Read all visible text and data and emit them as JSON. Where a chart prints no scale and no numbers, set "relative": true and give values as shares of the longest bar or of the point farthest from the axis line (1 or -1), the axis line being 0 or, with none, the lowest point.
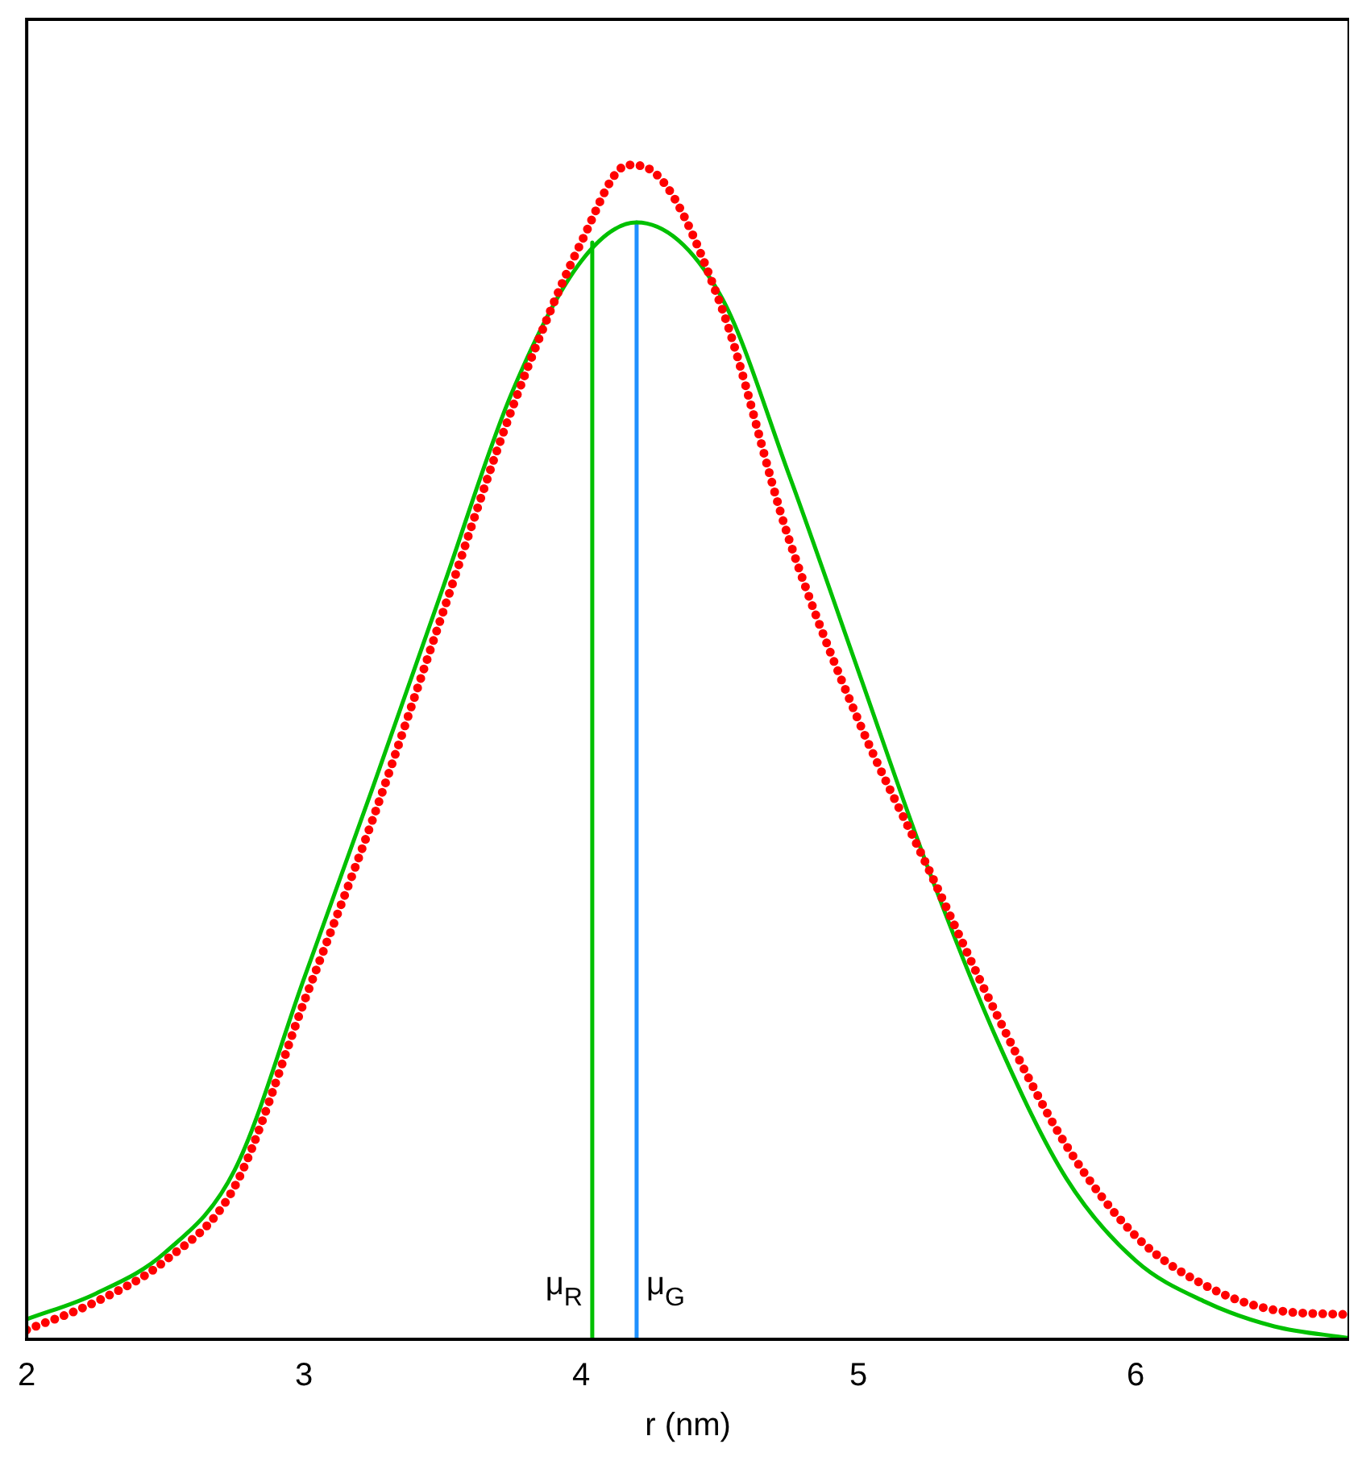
{
  "chart_data": {
    "type": "line",
    "xlabel": "r (nm)",
    "relative": true,
    "xlim": [
      2,
      6.77
    ],
    "xticks": [
      2,
      3,
      4,
      5,
      6
    ],
    "grid": false,
    "legend": false,
    "marker": "none",
    "series": [
      {
        "color": "#ff0000",
        "line_style": "dotted",
        "x": [
          2,
          2.25,
          2.5,
          2.75,
          3,
          3.25,
          3.5,
          3.75,
          4,
          4.17,
          4.25,
          4.5,
          4.75,
          5,
          5.25,
          5.5,
          5.75,
          6,
          6.25,
          6.5,
          6.77
        ],
        "values": [
          0.008,
          0.032,
          0.067,
          0.13,
          0.287,
          0.444,
          0.618,
          0.792,
          0.934,
          1,
          0.996,
          0.883,
          0.681,
          0.527,
          0.402,
          0.276,
          0.165,
          0.088,
          0.046,
          0.025,
          0.021
        ]
      },
      {
        "color": "#00c000",
        "line_style": "solid",
        "x": [
          2,
          2.25,
          2.5,
          2.75,
          3,
          3.25,
          3.5,
          3.75,
          4,
          4.2,
          4.5,
          4.75,
          5,
          5.25,
          5.5,
          5.75,
          6,
          6.25,
          6.5,
          6.77
        ],
        "values": [
          0.017,
          0.039,
          0.074,
          0.144,
          0.307,
          0.471,
          0.639,
          0.806,
          0.918,
          0.951,
          0.89,
          0.736,
          0.569,
          0.402,
          0.255,
          0.137,
          0.067,
          0.032,
          0.011,
          0.001
        ]
      },
      {
        "name": "μ$_{R}$",
        "color": "#00c000",
        "line_style": "solid",
        "x": [
          4.04,
          4.04
        ],
        "values": [
          0,
          0.934
        ]
      },
      {
        "name": "μ$_{G}$",
        "color": "#1e90ff",
        "line_style": "solid",
        "x": [
          4.2,
          4.2
        ],
        "values": [
          0,
          0.951
        ]
      }
    ]
  }
}
